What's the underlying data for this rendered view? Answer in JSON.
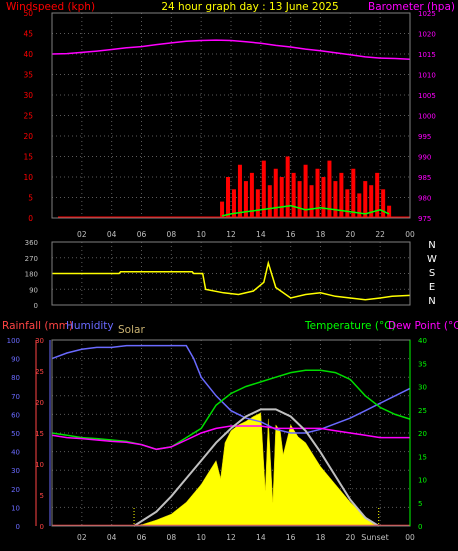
{
  "chart_data": [
    {
      "type": "line",
      "title": "24 hour graph day : 13 June 2025",
      "left_axis_label": "Windspeed (kph)",
      "right_axis_label": "Barometer (hpa)",
      "x_ticks": [
        "02",
        "04",
        "06",
        "08",
        "10",
        "12",
        "14",
        "16",
        "18",
        "20",
        "22",
        "00"
      ],
      "y_left_ticks": [
        "0",
        "5",
        "10",
        "15",
        "20",
        "25",
        "30",
        "35",
        "40",
        "45",
        "50"
      ],
      "y_left_range": [
        0,
        50
      ],
      "y_right_ticks": [
        "975",
        "980",
        "985",
        "990",
        "995",
        "1000",
        "1005",
        "1010",
        "1015",
        "1020",
        "1025"
      ],
      "y_right_range": [
        975,
        1025
      ],
      "grid": true,
      "colors": {
        "windspeed": "#ff0000",
        "gust_line": "#00ff00",
        "barometer": "#ff00ff",
        "title": "#ffff00",
        "axis_left": "#ff0000",
        "axis_right": "#ff00ff"
      },
      "series": [
        {
          "key": "barometer",
          "axis": "right",
          "x": [
            0,
            1,
            2,
            3,
            4,
            5,
            6,
            7,
            8,
            9,
            10,
            11,
            12,
            13,
            14,
            15,
            16,
            17,
            18,
            19,
            20,
            21,
            22,
            23,
            24
          ],
          "values": [
            1015,
            1015.1,
            1015.4,
            1015.7,
            1016.1,
            1016.5,
            1016.8,
            1017.3,
            1017.7,
            1018.1,
            1018.3,
            1018.4,
            1018.3,
            1018,
            1017.6,
            1017.1,
            1016.7,
            1016.2,
            1015.8,
            1015.3,
            1014.8,
            1014.3,
            1014,
            1013.9,
            1013.7
          ]
        },
        {
          "key": "windspeed",
          "axis": "left",
          "x": [
            11.4,
            11.8,
            12.2,
            12.6,
            13,
            13.4,
            13.8,
            14.2,
            14.6,
            15,
            15.4,
            15.8,
            16.2,
            16.6,
            17,
            17.4,
            17.8,
            18.2,
            18.6,
            19,
            19.4,
            19.8,
            20.2,
            20.6,
            21,
            21.4,
            21.8,
            22.2,
            22.6
          ],
          "values": [
            4,
            10,
            7,
            13,
            9,
            11,
            7,
            14,
            8,
            12,
            10,
            15,
            11,
            9,
            13,
            8,
            12,
            10,
            14,
            9,
            11,
            7,
            12,
            6,
            9,
            8,
            11,
            7,
            3
          ]
        },
        {
          "key": "wind_average",
          "axis": "left",
          "x": [
            11.4,
            12,
            13,
            14,
            15,
            16,
            17,
            18,
            19,
            20,
            21,
            22,
            22.6
          ],
          "values": [
            0.5,
            1,
            1.5,
            2,
            2.5,
            3,
            2,
            2.5,
            2,
            1.5,
            1,
            2,
            1
          ]
        }
      ]
    },
    {
      "type": "line",
      "title": "",
      "y_ticks": [
        "360",
        "270",
        "180",
        "90",
        "0"
      ],
      "y_range": [
        0,
        360
      ],
      "direction_labels": [
        "N",
        "W",
        "S",
        "E",
        "N"
      ],
      "grid": true,
      "colors": {
        "direction": "#ffff00"
      },
      "series": [
        {
          "key": "wind_direction",
          "x": [
            0,
            4.5,
            4.6,
            9.4,
            9.5,
            10.1,
            10.3,
            11.5,
            12.5,
            13.5,
            14.2,
            14.5,
            15,
            16,
            17,
            18,
            19,
            20,
            21,
            22,
            22.8,
            24
          ],
          "values": [
            180,
            180,
            190,
            190,
            180,
            180,
            90,
            70,
            60,
            80,
            130,
            240,
            100,
            40,
            60,
            70,
            50,
            40,
            30,
            40,
            50,
            55
          ]
        }
      ]
    },
    {
      "type": "area",
      "title": "",
      "labels": {
        "rain": "Rainfall (mm)",
        "humidity": "Humidity",
        "solar": "Solar",
        "temperature": "Temperature (°C)",
        "dew": "Dew Point (°C)"
      },
      "y_rain_ticks": [
        "0",
        "5",
        "10",
        "15",
        "20",
        "25",
        "30"
      ],
      "y_rain_range": [
        0,
        30
      ],
      "y_humidity_ticks": [
        "0",
        "10",
        "20",
        "30",
        "40",
        "50",
        "60",
        "70",
        "80",
        "90",
        "100"
      ],
      "y_humidity_range": [
        0,
        100
      ],
      "y_temp_ticks": [
        "0",
        "5",
        "10",
        "15",
        "20",
        "25",
        "30",
        "35",
        "40"
      ],
      "y_temp_range": [
        0,
        40
      ],
      "markers": {
        "sunrise": "",
        "sunset": "Sunset",
        "midnight": "00"
      },
      "sunrise_hour": 5.5,
      "sunset_hour": 21.9,
      "grid": true,
      "colors": {
        "humidity": "#6a6aff",
        "temperature": "#00dd00",
        "dew": "#ff00ff",
        "solar_fill": "#ffff00",
        "solar_curve": "#c0c0c0",
        "rain_axis": "#ff4444",
        "temp_axis": "#00ff00",
        "dew_label": "#ff00ff"
      },
      "series": [
        {
          "key": "humidity",
          "axis": "humidity",
          "x": [
            0,
            1,
            2,
            3,
            4,
            5,
            6,
            7,
            8,
            9,
            9.5,
            10,
            11,
            12,
            13,
            14,
            15,
            16,
            17,
            18,
            19,
            20,
            21,
            22,
            23,
            24
          ],
          "values": [
            90,
            93,
            95,
            96,
            96,
            97,
            97,
            97,
            97,
            97,
            90,
            80,
            70,
            62,
            58,
            56,
            52,
            50,
            50,
            52,
            55,
            58,
            62,
            66,
            70,
            74
          ]
        },
        {
          "key": "temperature",
          "axis": "temp",
          "x": [
            0,
            1,
            2,
            3,
            4,
            5,
            6,
            7,
            8,
            9,
            10,
            11,
            12,
            13,
            14,
            15,
            16,
            17,
            18,
            19,
            20,
            21,
            22,
            23,
            24
          ],
          "values": [
            20,
            19.5,
            19,
            18.8,
            18.5,
            18.2,
            17.5,
            16.5,
            17,
            19,
            21,
            26,
            28.5,
            30,
            31,
            32,
            33,
            33.5,
            33.5,
            33,
            31.5,
            28,
            25.5,
            24,
            23
          ]
        },
        {
          "key": "dew_point",
          "axis": "temp",
          "x": [
            0,
            1,
            2,
            3,
            4,
            5,
            6,
            7,
            8,
            9,
            10,
            11,
            12,
            13,
            14,
            15,
            16,
            17,
            18,
            19,
            20,
            21,
            22,
            23,
            24
          ],
          "values": [
            19.5,
            19,
            18.8,
            18.5,
            18.2,
            18,
            17.5,
            16.5,
            17,
            18.5,
            20,
            21,
            21.5,
            21.5,
            21.5,
            21,
            21,
            21,
            21,
            20.5,
            20,
            19.5,
            19,
            19,
            19
          ]
        },
        {
          "key": "solar_actual",
          "axis": "solar_pct",
          "x": [
            5.5,
            6,
            7,
            8,
            9,
            10,
            10.5,
            11,
            11.3,
            11.6,
            12,
            12.5,
            13,
            13.5,
            14,
            14.3,
            14.5,
            14.8,
            15,
            15.3,
            15.5,
            16,
            16.5,
            17,
            17.5,
            18,
            19,
            20,
            21,
            21.5,
            21.9
          ],
          "values": [
            0,
            0.01,
            0.05,
            0.1,
            0.2,
            0.35,
            0.45,
            0.55,
            0.4,
            0.7,
            0.8,
            0.85,
            0.88,
            0.92,
            0.95,
            0.3,
            0.9,
            0.2,
            0.85,
            0.8,
            0.6,
            0.85,
            0.75,
            0.7,
            0.6,
            0.5,
            0.35,
            0.2,
            0.08,
            0.02,
            0
          ]
        },
        {
          "key": "solar_theoretical",
          "axis": "solar_pct",
          "x": [
            5.5,
            7,
            8,
            9,
            10,
            11,
            12,
            13,
            14,
            15,
            16,
            17,
            18,
            19,
            20,
            21,
            21.9
          ],
          "values": [
            0,
            0.12,
            0.25,
            0.4,
            0.55,
            0.7,
            0.82,
            0.92,
            0.98,
            0.98,
            0.92,
            0.8,
            0.62,
            0.42,
            0.22,
            0.07,
            0
          ]
        }
      ]
    }
  ]
}
